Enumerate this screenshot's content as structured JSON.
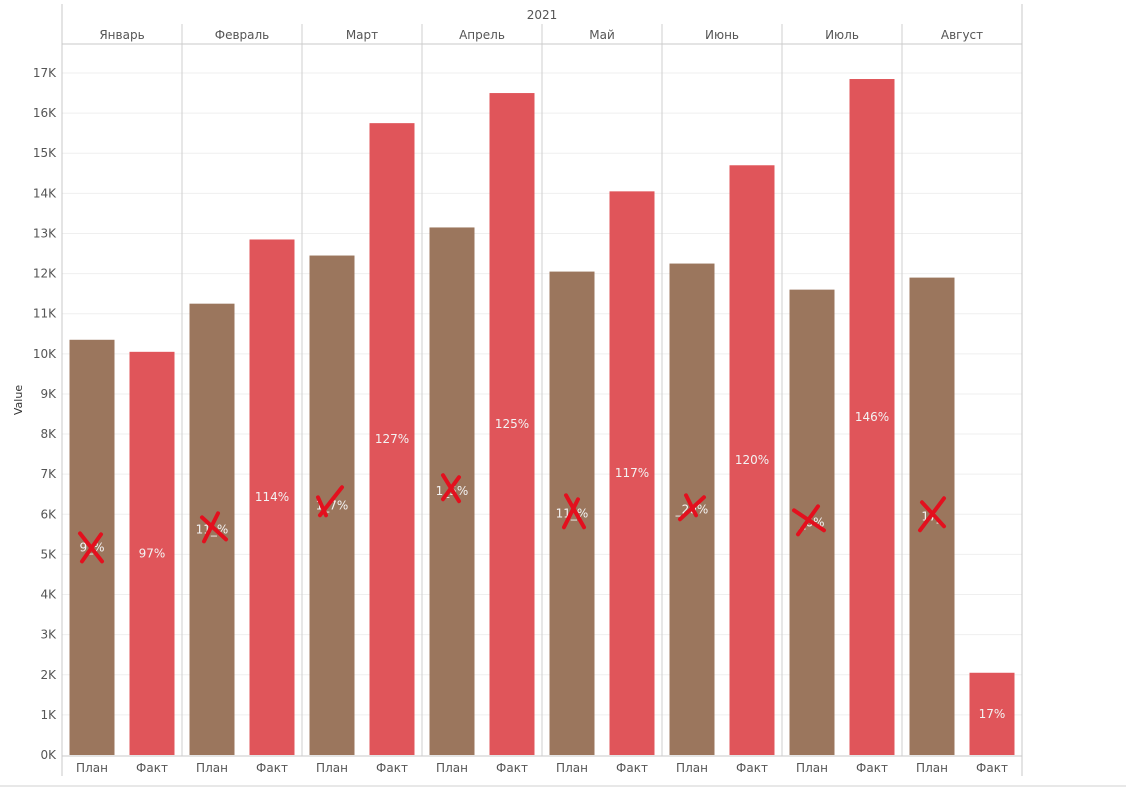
{
  "chart_data": {
    "type": "bar",
    "year_header": "2021",
    "ylabel": "Value",
    "ylim": [
      0,
      17000
    ],
    "y_ticks": [
      {
        "value": 0,
        "label": "0K"
      },
      {
        "value": 1000,
        "label": "1K"
      },
      {
        "value": 2000,
        "label": "2K"
      },
      {
        "value": 3000,
        "label": "3K"
      },
      {
        "value": 4000,
        "label": "4K"
      },
      {
        "value": 5000,
        "label": "5K"
      },
      {
        "value": 6000,
        "label": "6K"
      },
      {
        "value": 7000,
        "label": "7K"
      },
      {
        "value": 8000,
        "label": "8K"
      },
      {
        "value": 9000,
        "label": "9K"
      },
      {
        "value": 10000,
        "label": "10K"
      },
      {
        "value": 11000,
        "label": "11K"
      },
      {
        "value": 12000,
        "label": "12K"
      },
      {
        "value": 13000,
        "label": "13K"
      },
      {
        "value": 14000,
        "label": "14K"
      },
      {
        "value": 15000,
        "label": "15K"
      },
      {
        "value": 16000,
        "label": "16K"
      },
      {
        "value": 17000,
        "label": "17K"
      }
    ],
    "grid": true,
    "months": [
      {
        "name": "Январь",
        "bars": [
          {
            "category": "План",
            "value": 10350,
            "label": "9_%"
          },
          {
            "category": "Факт",
            "value": 10050,
            "label": "97%"
          }
        ]
      },
      {
        "name": "Февраль",
        "bars": [
          {
            "category": "План",
            "value": 11250,
            "label": "11_%"
          },
          {
            "category": "Факт",
            "value": 12850,
            "label": "114%"
          }
        ]
      },
      {
        "name": "Март",
        "bars": [
          {
            "category": "План",
            "value": 12450,
            "label": "1_7%"
          },
          {
            "category": "Факт",
            "value": 15750,
            "label": "127%"
          }
        ]
      },
      {
        "name": "Апрель",
        "bars": [
          {
            "category": "План",
            "value": 13150,
            "label": "1_5%"
          },
          {
            "category": "Факт",
            "value": 16500,
            "label": "125%"
          }
        ]
      },
      {
        "name": "Май",
        "bars": [
          {
            "category": "План",
            "value": 12050,
            "label": "11_%"
          },
          {
            "category": "Факт",
            "value": 14050,
            "label": "117%"
          }
        ]
      },
      {
        "name": "Июнь",
        "bars": [
          {
            "category": "План",
            "value": 12250,
            "label": "_20%"
          },
          {
            "category": "Факт",
            "value": 14700,
            "label": "120%"
          }
        ]
      },
      {
        "name": "Июль",
        "bars": [
          {
            "category": "План",
            "value": 11600,
            "label": "_6%"
          },
          {
            "category": "Факт",
            "value": 16850,
            "label": "146%"
          }
        ]
      },
      {
        "name": "Август",
        "bars": [
          {
            "category": "План",
            "value": 11900,
            "label": "17_"
          },
          {
            "category": "Факт",
            "value": 2050,
            "label": "17%"
          }
        ]
      }
    ],
    "series_colors": {
      "План": "#9b765d",
      "Факт": "#e0555a"
    },
    "annotation_color": "#e3101e",
    "annotations": "red hand-drawn cross marks over the План bar labels"
  }
}
